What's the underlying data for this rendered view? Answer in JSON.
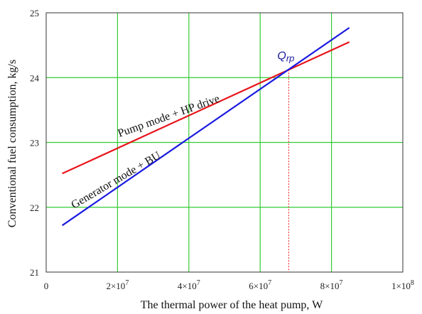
{
  "chart_data": {
    "type": "line",
    "title": "",
    "xlabel": "The thermal power of the heat pump, W",
    "ylabel": "Conventional fuel consumption, kg/s",
    "xlim": [
      0,
      100000000
    ],
    "ylim": [
      21,
      25
    ],
    "grid": true,
    "grid_color": "#33cc33",
    "x_ticks": [
      {
        "value": 0,
        "label": "0"
      },
      {
        "value": 20000000,
        "label": "2×10",
        "exp": "7"
      },
      {
        "value": 40000000,
        "label": "4×10",
        "exp": "7"
      },
      {
        "value": 60000000,
        "label": "6×10",
        "exp": "7"
      },
      {
        "value": 80000000,
        "label": "8×10",
        "exp": "7"
      },
      {
        "value": 100000000,
        "label": "1×10",
        "exp": "8"
      }
    ],
    "y_ticks": [
      {
        "value": 21,
        "label": "21"
      },
      {
        "value": 22,
        "label": "22"
      },
      {
        "value": 23,
        "label": "23"
      },
      {
        "value": 24,
        "label": "24"
      },
      {
        "value": 25,
        "label": "25"
      }
    ],
    "series": [
      {
        "name": "Pump mode + HP drive",
        "color": "#e8141b",
        "x": [
          4500000,
          85000000
        ],
        "y": [
          22.52,
          24.55
        ]
      },
      {
        "name": "Generator mode + BU",
        "color": "#1a1ae0",
        "x": [
          4500000,
          85000000
        ],
        "y": [
          21.72,
          24.77
        ]
      }
    ],
    "annotations": [
      {
        "label_main": "Q",
        "label_sub": "rp",
        "x": 68000000,
        "y": 24.12,
        "color": "#1a1a9e",
        "dashed_color": "#e8141b"
      }
    ]
  }
}
